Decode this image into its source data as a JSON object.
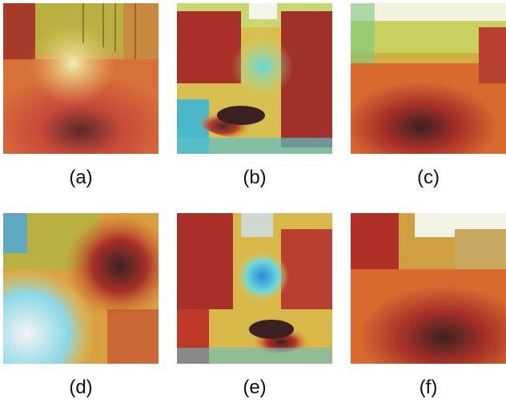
{
  "figure": {
    "captions": [
      "(a)",
      "(b)",
      "(c)",
      "(d)",
      "(e)",
      "(f)"
    ],
    "panel_style": "attention heatmap overlay (jet colormap) on forest trail photographs",
    "colors": {
      "hot": "#8a1a1a",
      "warm": "#d84a2a",
      "mid": "#e8c050",
      "cool": "#7fd8c8",
      "cold": "#2a9ad8",
      "sky": "#f6f3e8"
    }
  }
}
